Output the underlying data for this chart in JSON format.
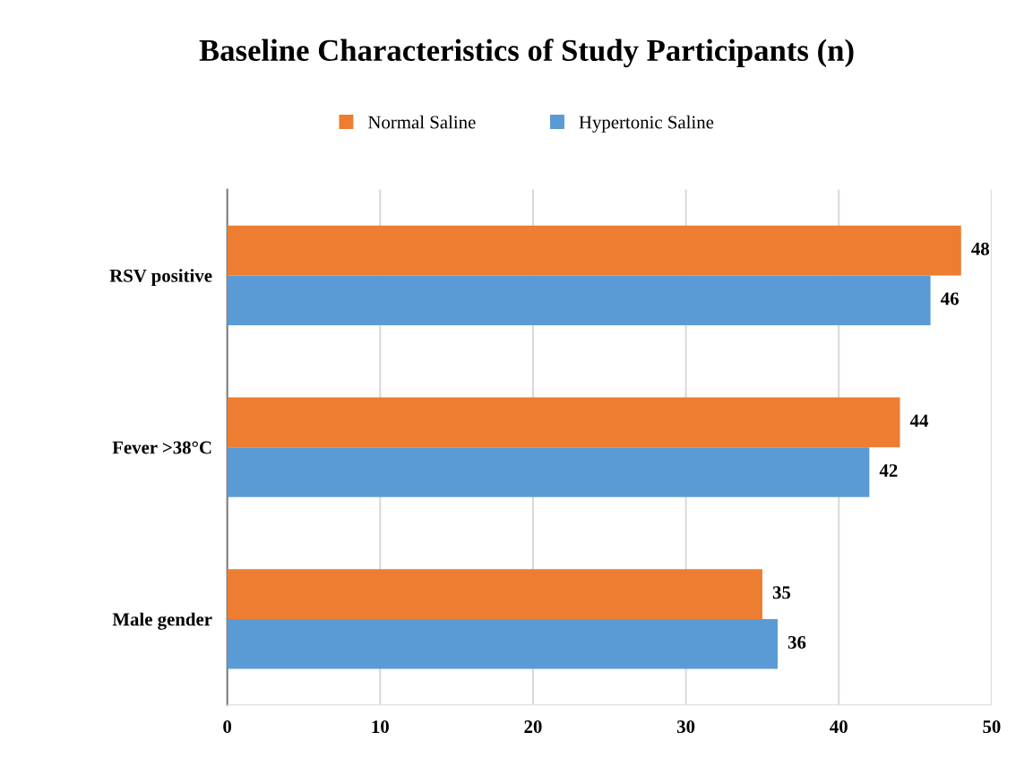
{
  "chart_data": {
    "type": "bar",
    "orientation": "horizontal",
    "title": "Baseline Characteristics of Study Participants (n)",
    "categories": [
      "RSV positive",
      "Fever >38°C",
      "Male gender"
    ],
    "series": [
      {
        "name": "Normal Saline",
        "color": "#ed7d31",
        "values": [
          48,
          44,
          35
        ]
      },
      {
        "name": "Hypertonic Saline",
        "color": "#5b9bd5",
        "values": [
          46,
          42,
          36
        ]
      }
    ],
    "xlim": [
      0,
      50
    ],
    "xticks": [
      0,
      10,
      20,
      30,
      40,
      50
    ],
    "grid": "x",
    "legend": "top",
    "data_labels": true
  }
}
